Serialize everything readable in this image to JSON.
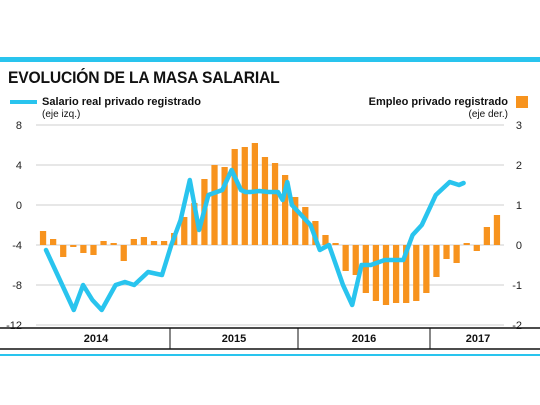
{
  "title": "EVOLUCIÓN DE LA MASA SALARIAL",
  "colors": {
    "accent": "#29c4ee",
    "bars": "#f7931e",
    "grid": "#cfcfcf"
  },
  "legend": {
    "line_name": "Salario real privado registrado",
    "line_note": "(eje izq.)",
    "bar_name": "Empleo privado registrado",
    "bar_note": "(eje der.)"
  },
  "chart_data": {
    "type": "bar+line",
    "left_axis": {
      "ticks": [
        "8",
        "4",
        "0",
        "-4",
        "-8",
        "-12"
      ],
      "ylim": [
        -12,
        8
      ]
    },
    "right_axis": {
      "ticks": [
        "3",
        "2",
        "1",
        "0",
        "-1",
        "-2"
      ],
      "ylim": [
        -2,
        3
      ]
    },
    "grid": true,
    "years": [
      "2014",
      "2015",
      "2016",
      "2017"
    ],
    "bar_series": {
      "name": "Empleo privado registrado",
      "axis": "right",
      "values": [
        0.35,
        0.15,
        -0.3,
        -0.05,
        -0.2,
        -0.25,
        0.1,
        0.05,
        -0.4,
        0.15,
        0.2,
        0.1,
        0.1,
        0.3,
        0.7,
        1.05,
        1.65,
        2.0,
        1.95,
        2.4,
        2.45,
        2.55,
        2.2,
        2.05,
        1.75,
        1.2,
        0.95,
        0.6,
        0.25,
        0.05,
        -0.65,
        -0.75,
        -1.2,
        -1.4,
        -1.5,
        -1.45,
        -1.45,
        -1.4,
        -1.2,
        -0.8,
        -0.35,
        -0.45,
        0.05,
        -0.15,
        0.45,
        0.75
      ]
    },
    "line_series": {
      "name": "Salario real privado registrado",
      "axis": "left",
      "x": [
        0,
        3,
        6,
        8,
        10,
        12,
        15,
        17,
        19,
        22,
        25,
        27,
        29,
        31,
        33,
        35,
        38,
        40,
        42,
        43,
        44,
        46,
        48,
        50,
        51,
        52,
        53,
        57,
        59,
        61,
        64,
        66,
        68,
        70,
        73,
        75,
        77,
        79,
        81,
        84,
        87,
        89,
        90
      ],
      "y": [
        -4.5,
        -7.5,
        -10.5,
        -8.0,
        -9.5,
        -10.5,
        -8.0,
        -7.7,
        -8.0,
        -6.7,
        -7.0,
        -4.0,
        -1.5,
        2.5,
        -2.5,
        1.0,
        1.5,
        3.5,
        1.5,
        1.3,
        1.3,
        1.4,
        1.3,
        1.3,
        0.5,
        2.3,
        0.0,
        -2.0,
        -4.5,
        -4.0,
        -8.0,
        -10.0,
        -6.0,
        -6.0,
        -5.5,
        -5.5,
        -5.5,
        -3.0,
        -2.0,
        1.0,
        2.3,
        2.0,
        2.2
      ]
    }
  }
}
